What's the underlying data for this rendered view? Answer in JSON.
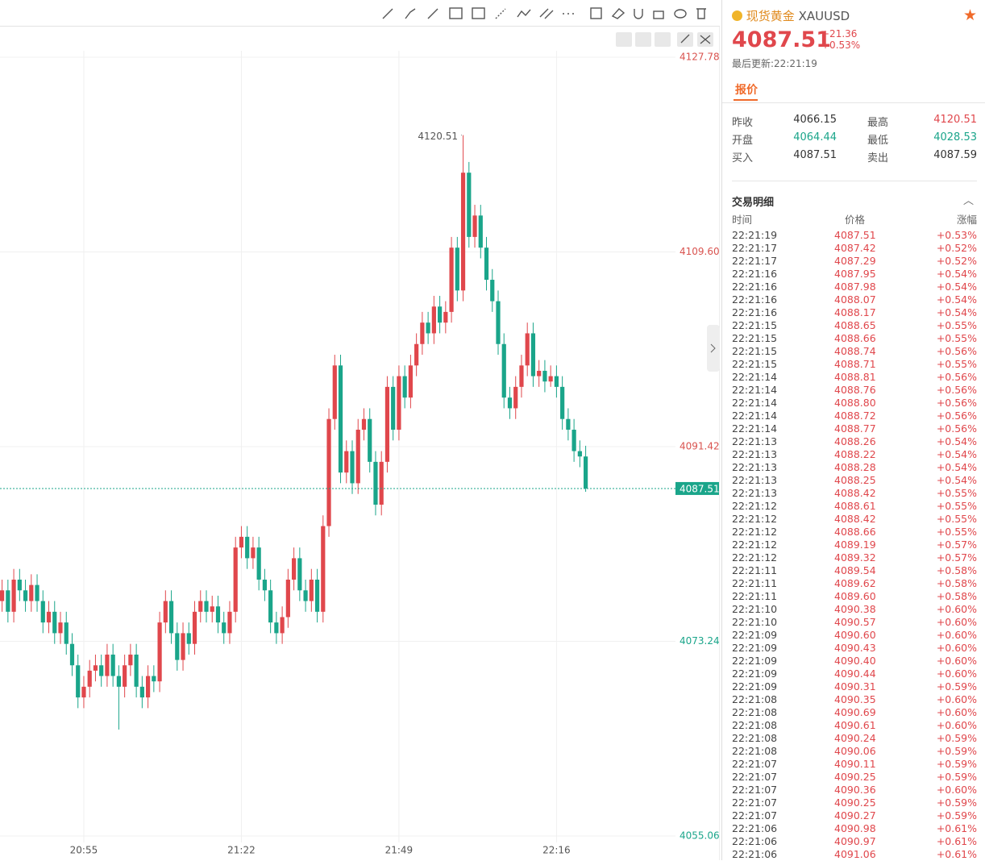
{
  "chart_data": {
    "type": "candlestick",
    "categories": [
      null,
      null,
      null,
      null,
      null,
      null,
      null,
      null,
      null,
      null,
      null,
      null,
      null,
      null,
      "20:55",
      null,
      null,
      null,
      null,
      null,
      null,
      null,
      null,
      null,
      null,
      null,
      null,
      null,
      null,
      null,
      null,
      null,
      null,
      null,
      null,
      null,
      null,
      null,
      null,
      null,
      null,
      "21:22",
      null,
      null,
      null,
      null,
      null,
      null,
      null,
      null,
      null,
      null,
      null,
      null,
      null,
      null,
      null,
      null,
      null,
      null,
      null,
      null,
      null,
      null,
      null,
      null,
      null,
      null,
      "21:49",
      null,
      null,
      null,
      null,
      null,
      null,
      null,
      null,
      null,
      null,
      null,
      null,
      null,
      null,
      null,
      null,
      null,
      null,
      null,
      null,
      null,
      null,
      null,
      null,
      null,
      null,
      "22:16",
      null,
      null,
      null,
      null,
      null
    ],
    "open": [
      4077,
      4078,
      4076,
      4079,
      4078,
      4077,
      4078.5,
      4077,
      4075,
      4076,
      4074,
      4075,
      4073,
      4071,
      4068,
      4069,
      4070.5,
      4071,
      4070,
      4072,
      4070,
      4069,
      4071,
      4072,
      4069,
      4068,
      4070,
      4069.5,
      4075,
      4077,
      4074,
      4071.5,
      4074,
      4073,
      4076,
      4077,
      4076,
      4076.5,
      4075,
      4074,
      4076,
      4082,
      4083,
      4081,
      4082,
      4079,
      4078,
      4075,
      4074,
      4075.5,
      4079,
      4081,
      4078,
      4077,
      4079,
      4076,
      4084,
      4094,
      4099,
      4089,
      4091,
      4088,
      4093,
      4094,
      4090,
      4086,
      4090,
      4097,
      4093,
      4098,
      4096,
      4099,
      4101,
      4103,
      4102,
      4104.5,
      4103,
      4104,
      4110,
      4106,
      4117,
      4111,
      4113,
      4110,
      4107,
      4105,
      4101,
      4096,
      4095,
      4097,
      4099,
      4102,
      4098,
      4098.5,
      4097.5,
      4098,
      4097,
      4094,
      4093,
      4091,
      4090.5
    ],
    "high": [
      4079,
      4079,
      4080,
      4080,
      4079,
      4079.5,
      4079.5,
      4078,
      4077,
      4077,
      4076,
      4076,
      4074,
      4072,
      4070,
      4071.5,
      4072,
      4072,
      4073,
      4073,
      4071,
      4072,
      4073,
      4073,
      4070,
      4071,
      4071,
      4076,
      4078,
      4078,
      4075,
      4075,
      4075,
      4077,
      4078,
      4078,
      4077.5,
      4077.5,
      4076,
      4077,
      4083,
      4084,
      4084,
      4083,
      4083,
      4080,
      4079,
      4076,
      4076.5,
      4080,
      4082,
      4082,
      4079,
      4080,
      4080,
      4085,
      4095,
      4100,
      4100,
      4092,
      4092,
      4094,
      4095,
      4095,
      4091,
      4091,
      4098,
      4098,
      4099,
      4099,
      4100,
      4102,
      4104,
      4104,
      4105.5,
      4105.5,
      4105,
      4111,
      4111,
      4120.51,
      4118,
      4114,
      4114,
      4111,
      4108,
      4106,
      4102,
      4097,
      4098,
      4100,
      4103,
      4103,
      4099.5,
      4099.5,
      4099,
      4099,
      4098,
      4095,
      4094,
      4092,
      4091.5
    ],
    "low": [
      4076,
      4075,
      4075,
      4077,
      4076,
      4076,
      4076,
      4074,
      4074,
      4073,
      4073,
      4072,
      4070,
      4067,
      4067,
      4068,
      4069.5,
      4069,
      4069,
      4069,
      4065,
      4068,
      4070,
      4068,
      4067,
      4067,
      4068.5,
      4068.5,
      4074,
      4073,
      4070.5,
      4070.5,
      4072,
      4072,
      4075,
      4075,
      4075,
      4074,
      4073,
      4073,
      4075,
      4081,
      4080,
      4080,
      4078,
      4077,
      4074,
      4073,
      4073,
      4074.5,
      4078,
      4077,
      4076,
      4076,
      4075,
      4075,
      4083,
      4093,
      4088,
      4088,
      4087,
      4087,
      4092,
      4089,
      4085,
      4085,
      4089,
      4092,
      4092,
      4095,
      4095,
      4098,
      4100,
      4101,
      4101,
      4102,
      4102,
      4103,
      4105,
      4105,
      4110,
      4110,
      4109,
      4106,
      4104,
      4100,
      4095,
      4094,
      4094,
      4096,
      4098,
      4097,
      4097,
      4096.5,
      4097,
      4096,
      4093,
      4092,
      4090,
      4089.5,
      4087.2
    ],
    "close": [
      4078,
      4076,
      4079,
      4078,
      4077,
      4078.5,
      4077,
      4075,
      4076,
      4074,
      4075,
      4073,
      4071,
      4068,
      4069,
      4070.5,
      4071,
      4070,
      4072,
      4070,
      4069,
      4071,
      4072,
      4069,
      4068,
      4070,
      4069.5,
      4075,
      4077,
      4074,
      4071.5,
      4074,
      4073,
      4076,
      4077,
      4076,
      4076.5,
      4075,
      4074,
      4076,
      4082,
      4083,
      4081,
      4082,
      4079,
      4078,
      4075,
      4074,
      4075.5,
      4079,
      4081,
      4078,
      4077,
      4079,
      4076,
      4084,
      4094,
      4099,
      4089,
      4091,
      4088,
      4093,
      4094,
      4090,
      4086,
      4090,
      4097,
      4093,
      4098,
      4096,
      4099,
      4101,
      4103,
      4102,
      4104.5,
      4103,
      4104,
      4110,
      4106,
      4117,
      4111,
      4113,
      4110,
      4107,
      4105,
      4101,
      4096,
      4095,
      4097,
      4099,
      4102,
      4098,
      4098.5,
      4097.5,
      4098,
      4097,
      4094,
      4093,
      4091,
      4090.5,
      4087.51
    ],
    "up_color": "#e0474c",
    "down_color": "#1aa58a",
    "ylim": [
      4055.06,
      4127.78
    ],
    "yticks": [
      4055.06,
      4073.24,
      {
        "value": 4091.42,
        "label": "4091.42"
      },
      {
        "value": 4109.6,
        "label": "4109.60"
      },
      4127.78
    ],
    "grid": true
  },
  "quote": {
    "name": "现货黄金",
    "symbol": "XAUUSD",
    "price": "4087.51",
    "change": "+21.36",
    "change_pct": "+0.53%",
    "updated": "最后更新:22:21:19",
    "tab": "报价",
    "stats": [
      [
        "昨收",
        "4066.15",
        "最高",
        "4120.51"
      ],
      [
        "开盘",
        "4064.44",
        "最低",
        "4028.53"
      ],
      [
        "买入",
        "4087.51",
        "卖出",
        "4087.59"
      ]
    ]
  },
  "trades": {
    "title": "交易明细",
    "headers": [
      "时间",
      "价格",
      "涨幅"
    ],
    "rows": [
      [
        "22:21:19",
        "4087.51",
        "+0.53%"
      ],
      [
        "22:21:17",
        "4087.42",
        "+0.52%"
      ],
      [
        "22:21:17",
        "4087.29",
        "+0.52%"
      ],
      [
        "22:21:16",
        "4087.95",
        "+0.54%"
      ],
      [
        "22:21:16",
        "4087.98",
        "+0.54%"
      ],
      [
        "22:21:16",
        "4088.07",
        "+0.54%"
      ],
      [
        "22:21:16",
        "4088.17",
        "+0.54%"
      ],
      [
        "22:21:15",
        "4088.65",
        "+0.55%"
      ],
      [
        "22:21:15",
        "4088.66",
        "+0.55%"
      ],
      [
        "22:21:15",
        "4088.74",
        "+0.56%"
      ],
      [
        "22:21:15",
        "4088.71",
        "+0.55%"
      ],
      [
        "22:21:14",
        "4088.81",
        "+0.56%"
      ],
      [
        "22:21:14",
        "4088.76",
        "+0.56%"
      ],
      [
        "22:21:14",
        "4088.80",
        "+0.56%"
      ],
      [
        "22:21:14",
        "4088.72",
        "+0.56%"
      ],
      [
        "22:21:14",
        "4088.77",
        "+0.56%"
      ],
      [
        "22:21:13",
        "4088.26",
        "+0.54%"
      ],
      [
        "22:21:13",
        "4088.22",
        "+0.54%"
      ],
      [
        "22:21:13",
        "4088.28",
        "+0.54%"
      ],
      [
        "22:21:13",
        "4088.25",
        "+0.54%"
      ],
      [
        "22:21:13",
        "4088.42",
        "+0.55%"
      ],
      [
        "22:21:12",
        "4088.61",
        "+0.55%"
      ],
      [
        "22:21:12",
        "4088.42",
        "+0.55%"
      ],
      [
        "22:21:12",
        "4088.66",
        "+0.55%"
      ],
      [
        "22:21:12",
        "4089.19",
        "+0.57%"
      ],
      [
        "22:21:12",
        "4089.32",
        "+0.57%"
      ],
      [
        "22:21:11",
        "4089.54",
        "+0.58%"
      ],
      [
        "22:21:11",
        "4089.62",
        "+0.58%"
      ],
      [
        "22:21:11",
        "4089.60",
        "+0.58%"
      ],
      [
        "22:21:10",
        "4090.38",
        "+0.60%"
      ],
      [
        "22:21:10",
        "4090.57",
        "+0.60%"
      ],
      [
        "22:21:09",
        "4090.60",
        "+0.60%"
      ],
      [
        "22:21:09",
        "4090.43",
        "+0.60%"
      ],
      [
        "22:21:09",
        "4090.40",
        "+0.60%"
      ],
      [
        "22:21:09",
        "4090.44",
        "+0.60%"
      ],
      [
        "22:21:09",
        "4090.31",
        "+0.59%"
      ],
      [
        "22:21:08",
        "4090.35",
        "+0.60%"
      ],
      [
        "22:21:08",
        "4090.69",
        "+0.60%"
      ],
      [
        "22:21:08",
        "4090.61",
        "+0.60%"
      ],
      [
        "22:21:08",
        "4090.24",
        "+0.59%"
      ],
      [
        "22:21:08",
        "4090.06",
        "+0.59%"
      ],
      [
        "22:21:07",
        "4090.11",
        "+0.59%"
      ],
      [
        "22:21:07",
        "4090.25",
        "+0.59%"
      ],
      [
        "22:21:07",
        "4090.36",
        "+0.60%"
      ],
      [
        "22:21:07",
        "4090.25",
        "+0.59%"
      ],
      [
        "22:21:07",
        "4090.27",
        "+0.59%"
      ],
      [
        "22:21:06",
        "4090.98",
        "+0.61%"
      ],
      [
        "22:21:06",
        "4090.97",
        "+0.61%"
      ],
      [
        "22:21:06",
        "4091.06",
        "+0.61%"
      ]
    ]
  }
}
